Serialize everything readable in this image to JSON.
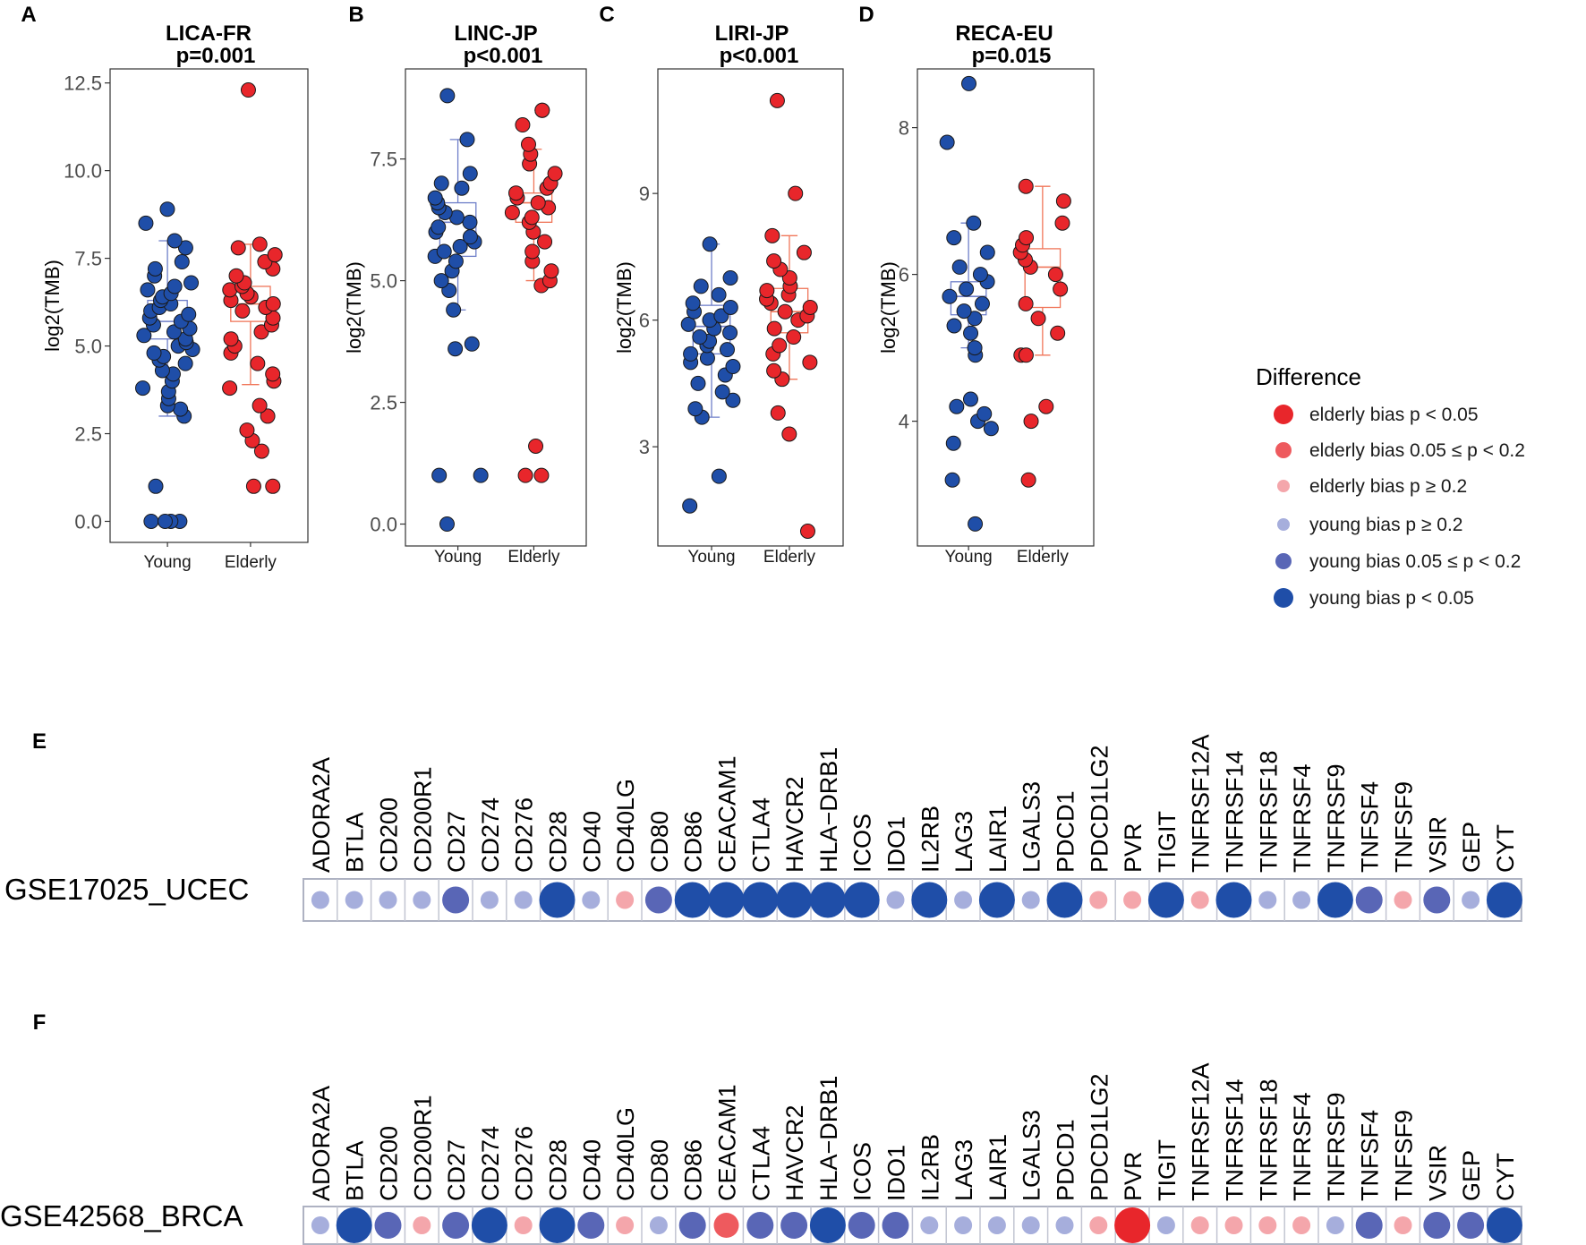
{
  "colors": {
    "young": "#1f4ea8",
    "elderly": "#e8262b",
    "young_box": "#6f7fc9",
    "elderly_box": "#f0765a",
    "legend": [
      "#e8262b",
      "#ee5a5e",
      "#f4a6ab",
      "#a6aedc",
      "#5966b6",
      "#1f4ea8"
    ]
  },
  "chart_data": [
    {
      "type": "box",
      "panel": "A",
      "title_line1": "LICA-FR",
      "title_line2": "p=0.001",
      "ylabel": "log2(TMB)",
      "ylim": [
        -0.6,
        12.9
      ],
      "yticks": [
        0,
        2.5,
        5,
        7.5,
        10,
        12.5
      ],
      "ytick_labels": [
        "0.0",
        "2.5",
        "5.0",
        "7.5",
        "10.0",
        "12.5"
      ],
      "categories": [
        "Young",
        "Elderly"
      ],
      "boxes": [
        {
          "group": "Young",
          "min": 3.0,
          "q1": 5.2,
          "median": 5.7,
          "q3": 6.3,
          "max": 8.0
        },
        {
          "group": "Elderly",
          "min": 3.9,
          "q1": 5.7,
          "median": 6.2,
          "q3": 6.7,
          "max": 7.9
        }
      ],
      "points": {
        "Young": [
          0,
          0,
          0,
          0,
          1.0,
          3.0,
          3.2,
          3.3,
          3.5,
          3.7,
          3.8,
          4.0,
          4.2,
          4.3,
          4.5,
          4.6,
          4.7,
          4.8,
          4.9,
          5.0,
          5.1,
          5.2,
          5.3,
          5.4,
          5.5,
          5.6,
          5.7,
          5.8,
          5.9,
          6.0,
          6.1,
          6.2,
          6.3,
          6.4,
          6.5,
          6.6,
          6.7,
          6.8,
          7.0,
          7.2,
          7.4,
          7.8,
          8.0,
          8.5,
          8.9
        ],
        "Elderly": [
          1.0,
          1.0,
          2.0,
          2.3,
          2.6,
          3.0,
          3.3,
          3.8,
          4.0,
          4.2,
          4.5,
          4.8,
          5.0,
          5.2,
          5.4,
          5.6,
          5.8,
          6.0,
          6.1,
          6.2,
          6.3,
          6.4,
          6.5,
          6.6,
          6.7,
          6.8,
          7.0,
          7.2,
          7.4,
          7.6,
          7.8,
          7.9,
          12.3
        ]
      }
    },
    {
      "type": "box",
      "panel": "B",
      "title_line1": "LINC-JP",
      "title_line2": "p<0.001",
      "ylabel": "log2(TMB)",
      "ylim": [
        -0.45,
        9.35
      ],
      "yticks": [
        0,
        2.5,
        5,
        7.5
      ],
      "ytick_labels": [
        "0.0",
        "2.5",
        "5.0",
        "7.5"
      ],
      "categories": [
        "Young",
        "Elderly"
      ],
      "boxes": [
        {
          "group": "Young",
          "min": 4.4,
          "q1": 5.5,
          "median": 6.2,
          "q3": 6.6,
          "max": 7.9
        },
        {
          "group": "Elderly",
          "min": 5.0,
          "q1": 6.2,
          "median": 6.6,
          "q3": 6.8,
          "max": 7.7
        }
      ],
      "points": {
        "Young": [
          0,
          1.0,
          1.0,
          3.6,
          3.7,
          4.4,
          4.8,
          5.0,
          5.2,
          5.4,
          5.5,
          5.6,
          5.7,
          5.8,
          5.9,
          6.0,
          6.1,
          6.2,
          6.3,
          6.4,
          6.5,
          6.6,
          6.7,
          6.9,
          7.0,
          7.2,
          7.9,
          8.8
        ],
        "Elderly": [
          1.0,
          1.0,
          1.6,
          4.9,
          5.0,
          5.2,
          5.4,
          5.6,
          5.8,
          6.0,
          6.2,
          6.3,
          6.4,
          6.5,
          6.6,
          6.7,
          6.8,
          6.9,
          7.0,
          7.2,
          7.4,
          7.6,
          7.8,
          8.2,
          8.5,
          8.5
        ]
      }
    },
    {
      "type": "box",
      "panel": "C",
      "title_line1": "LIRI-JP",
      "title_line2": "p<0.001",
      "ylabel": "log2(TMB)",
      "ylim": [
        0.65,
        11.95
      ],
      "yticks": [
        3,
        6,
        9
      ],
      "ytick_labels": [
        "3",
        "6",
        "9"
      ],
      "categories": [
        "Young",
        "Elderly"
      ],
      "boxes": [
        {
          "group": "Young",
          "min": 3.7,
          "q1": 5.2,
          "median": 5.85,
          "q3": 6.35,
          "max": 7.8
        },
        {
          "group": "Elderly",
          "min": 4.6,
          "q1": 5.7,
          "median": 6.2,
          "q3": 6.75,
          "max": 8.0
        }
      ],
      "points": {
        "Young": [
          1.6,
          2.3,
          3.7,
          3.9,
          4.1,
          4.3,
          4.5,
          4.7,
          4.9,
          5.0,
          5.1,
          5.2,
          5.3,
          5.4,
          5.5,
          5.6,
          5.7,
          5.8,
          5.9,
          6.0,
          6.1,
          6.2,
          6.3,
          6.4,
          6.6,
          6.8,
          7.0,
          7.8
        ],
        "Elderly": [
          1.0,
          3.3,
          3.8,
          4.6,
          4.8,
          5.0,
          5.2,
          5.4,
          5.6,
          5.8,
          6.0,
          6.1,
          6.2,
          6.3,
          6.4,
          6.5,
          6.6,
          6.7,
          6.8,
          7.0,
          7.2,
          7.4,
          7.6,
          8.0,
          9.0,
          11.2
        ]
      }
    },
    {
      "type": "box",
      "panel": "D",
      "title_line1": "RECA-EU",
      "title_line2": "p=0.015",
      "ylabel": "log2(TMB)",
      "ylim": [
        2.3,
        8.8
      ],
      "yticks": [
        4,
        6,
        8
      ],
      "ytick_labels": [
        "4",
        "6",
        "8"
      ],
      "categories": [
        "Young",
        "Elderly"
      ],
      "boxes": [
        {
          "group": "Young",
          "min": 5.0,
          "q1": 5.45,
          "median": 5.7,
          "q3": 5.9,
          "max": 6.7
        },
        {
          "group": "Elderly",
          "min": 4.9,
          "q1": 5.55,
          "median": 6.1,
          "q3": 6.35,
          "max": 7.2
        }
      ],
      "points": {
        "Young": [
          2.6,
          3.2,
          3.7,
          3.9,
          4.0,
          4.1,
          4.2,
          4.3,
          4.9,
          5.0,
          5.2,
          5.3,
          5.4,
          5.5,
          5.6,
          5.7,
          5.8,
          5.9,
          6.0,
          6.1,
          6.3,
          6.5,
          6.7,
          7.8,
          8.6
        ],
        "Elderly": [
          3.2,
          4.0,
          4.2,
          4.9,
          4.9,
          5.2,
          5.4,
          5.6,
          5.8,
          6.0,
          6.1,
          6.2,
          6.3,
          6.4,
          6.5,
          6.7,
          7.0,
          7.2
        ]
      }
    },
    {
      "type": "dotmatrix",
      "panel": "E",
      "dataset": "GSE17025_UCEC",
      "genes": [
        "ADORA2A",
        "BTLA",
        "CD200",
        "CD200R1",
        "CD27",
        "CD274",
        "CD276",
        "CD28",
        "CD40",
        "CD40LG",
        "CD80",
        "CD86",
        "CEACAM1",
        "CTLA4",
        "HAVCR2",
        "HLA−DRB1",
        "ICOS",
        "IDO1",
        "IL2RB",
        "LAG3",
        "LAIR1",
        "LGALS3",
        "PDCD1",
        "PDCD1LG2",
        "PVR",
        "TIGIT",
        "TNFRSF12A",
        "TNFRSF14",
        "TNFRSF18",
        "TNFRSF4",
        "TNFRSF9",
        "TNFSF4",
        "TNFSF9",
        "VSIR",
        "GEP",
        "CYT"
      ],
      "levels": [
        3,
        3,
        3,
        3,
        4,
        3,
        3,
        5,
        3,
        2,
        4,
        5,
        5,
        5,
        5,
        5,
        5,
        3,
        5,
        3,
        5,
        3,
        5,
        2,
        2,
        5,
        2,
        5,
        3,
        3,
        5,
        4,
        2,
        4,
        3,
        5
      ]
    },
    {
      "type": "dotmatrix",
      "panel": "F",
      "dataset": "GSE42568_BRCA",
      "genes": [
        "ADORA2A",
        "BTLA",
        "CD200",
        "CD200R1",
        "CD27",
        "CD274",
        "CD276",
        "CD28",
        "CD40",
        "CD40LG",
        "CD80",
        "CD86",
        "CEACAM1",
        "CTLA4",
        "HAVCR2",
        "HLA−DRB1",
        "ICOS",
        "IDO1",
        "IL2RB",
        "LAG3",
        "LAIR1",
        "LGALS3",
        "PDCD1",
        "PDCD1LG2",
        "PVR",
        "TIGIT",
        "TNFRSF12A",
        "TNFRSF14",
        "TNFRSF18",
        "TNFRSF4",
        "TNFRSF9",
        "TNFSF4",
        "TNFSF9",
        "VSIR",
        "GEP",
        "CYT"
      ],
      "levels": [
        3,
        5,
        4,
        2,
        4,
        5,
        2,
        5,
        4,
        2,
        3,
        4,
        1,
        4,
        4,
        5,
        4,
        4,
        3,
        3,
        3,
        3,
        3,
        2,
        0,
        3,
        2,
        2,
        2,
        2,
        3,
        4,
        2,
        4,
        4,
        5
      ]
    }
  ],
  "legend": {
    "title": "Difference",
    "entries": [
      "elderly bias p < 0.05",
      "elderly bias 0.05 ≤ p < 0.2",
      "elderly bias p ≥ 0.2",
      "young bias p ≥ 0.2",
      "young bias 0.05 ≤ p < 0.2",
      "young bias p < 0.05"
    ]
  }
}
